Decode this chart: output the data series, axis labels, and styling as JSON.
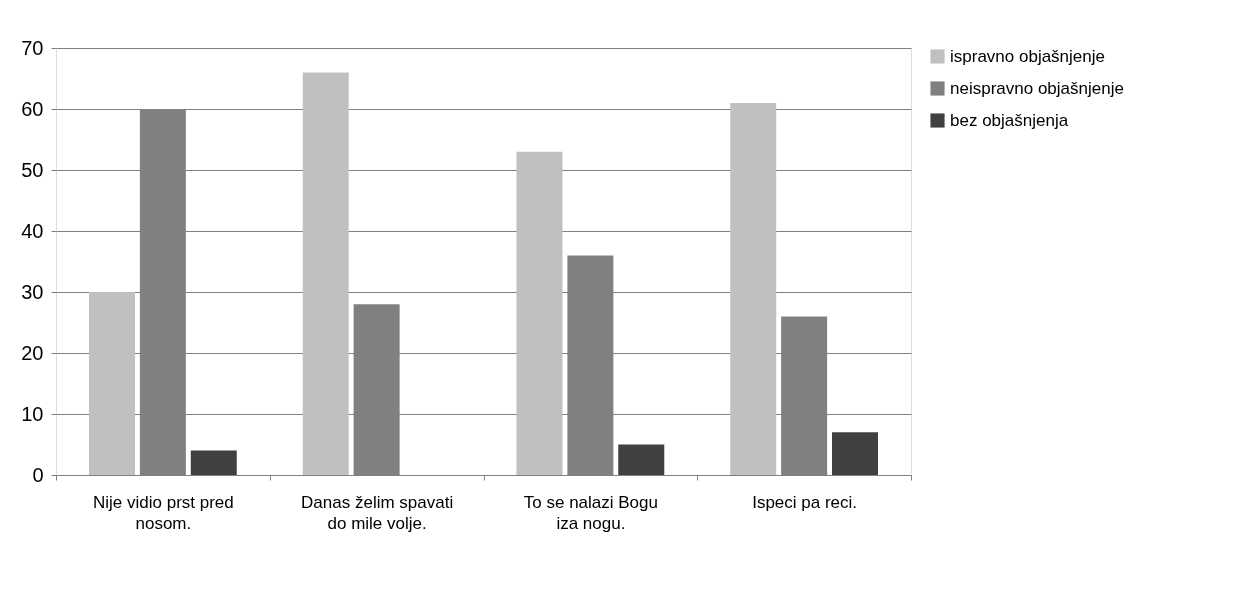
{
  "chart_data": {
    "type": "bar",
    "categories": [
      "Nije vidio prst pred nosom.",
      "Danas želim spavati do mile volje.",
      "To se nalazi Bogu iza nogu.",
      "Ispeci pa reci."
    ],
    "series": [
      {
        "name": "ispravno objašnjenje",
        "color": "#c0c0c0",
        "values": [
          30,
          66,
          53,
          61
        ]
      },
      {
        "name": "neispravno objašnjenje",
        "color": "#808080",
        "values": [
          60,
          28,
          36,
          26
        ]
      },
      {
        "name": "bez objašnjenja",
        "color": "#404040",
        "values": [
          4,
          0,
          5,
          7
        ]
      }
    ],
    "ylim": [
      0,
      70
    ],
    "yticks": [
      0,
      10,
      20,
      30,
      40,
      50,
      60,
      70
    ],
    "grid": "y",
    "legend": "right"
  }
}
